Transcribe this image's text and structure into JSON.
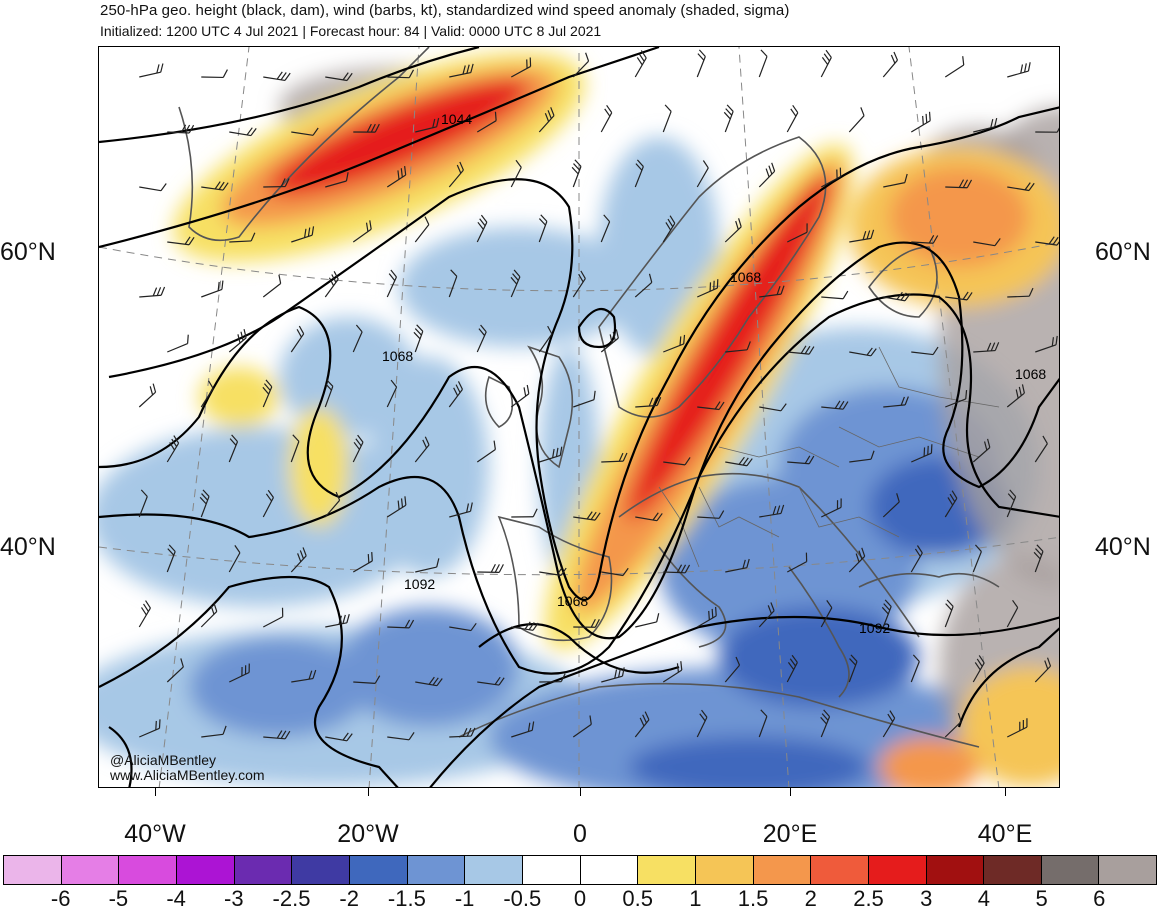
{
  "header": {
    "title": "250-hPa geo. height (black, dam), wind (barbs, kt), standardized wind speed anomaly (shaded, sigma)",
    "subtitle": "Initialized: 1200 UTC 4 Jul 2021 | Forecast hour: 84 | Valid: 0000 UTC 8 Jul 2021"
  },
  "map": {
    "latitude_labels": [
      "60°N",
      "40°N"
    ],
    "longitude_labels": [
      "40°W",
      "20°W",
      "0",
      "20°E",
      "40°E"
    ],
    "contour_labels": [
      "1044",
      "1068",
      "1068",
      "1068",
      "1092",
      "1068",
      "1092"
    ],
    "credit_handle": "@AliciaMBentley",
    "credit_site": "www.AliciaMBentley.com"
  },
  "colorbar": {
    "colors": [
      "#ebb5ea",
      "#e57ee6",
      "#d84bde",
      "#ac14d4",
      "#6b2bb0",
      "#3f3aa3",
      "#3f68bd",
      "#6e94d3",
      "#a7c8e6",
      "#ffffff",
      "#ffffff",
      "#f7e063",
      "#f5c556",
      "#f4974c",
      "#ef5b3b",
      "#e51c1c",
      "#a11010",
      "#6e2a26",
      "#756d6b",
      "#a89f9d"
    ],
    "labels": [
      "-6",
      "-5",
      "-4",
      "-3",
      "-2.5",
      "-2",
      "-1.5",
      "-1",
      "-0.5",
      "0",
      "0.5",
      "1",
      "1.5",
      "2",
      "2.5",
      "3",
      "4",
      "5",
      "6"
    ]
  }
}
